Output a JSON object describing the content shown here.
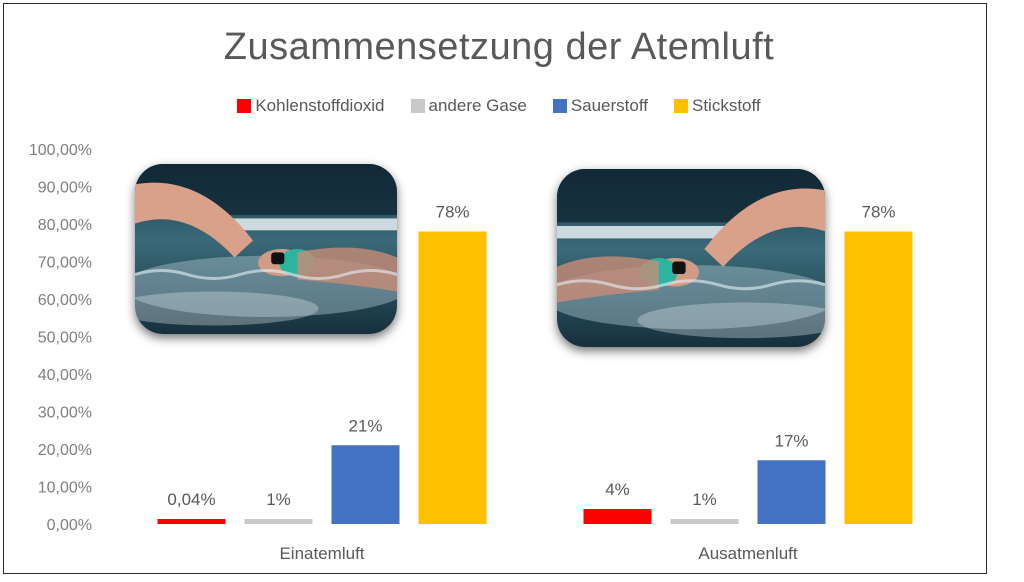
{
  "chart_data": {
    "type": "bar",
    "title": "Zusammensetzung der Atemluft",
    "categories": [
      "Einatemluft",
      "Ausatmenluft"
    ],
    "series": [
      {
        "name": "Kohlenstoffdioxid",
        "color": "#ff0000",
        "values": [
          0.04,
          4
        ],
        "labels": [
          "0,04%",
          "4%"
        ]
      },
      {
        "name": "andere Gase",
        "color": "#c9c9c9",
        "values": [
          1,
          1
        ],
        "labels": [
          "1%",
          "1%"
        ]
      },
      {
        "name": "Sauerstoff",
        "color": "#4472c4",
        "values": [
          21,
          17
        ],
        "labels": [
          "21%",
          "17%"
        ]
      },
      {
        "name": "Stickstoff",
        "color": "#ffc000",
        "values": [
          78,
          78
        ],
        "labels": [
          "78%",
          "78%"
        ]
      }
    ],
    "ylim": [
      0,
      100
    ],
    "yticks": [
      "0,00%",
      "10,00%",
      "20,00%",
      "30,00%",
      "40,00%",
      "50,00%",
      "60,00%",
      "70,00%",
      "80,00%",
      "90,00%",
      "100,00%"
    ],
    "grid": false,
    "legend_position": "top"
  },
  "images": [
    {
      "name": "swimmer-photo-left",
      "icon": "swimmer-photo"
    },
    {
      "name": "swimmer-photo-right",
      "icon": "swimmer-photo"
    }
  ]
}
